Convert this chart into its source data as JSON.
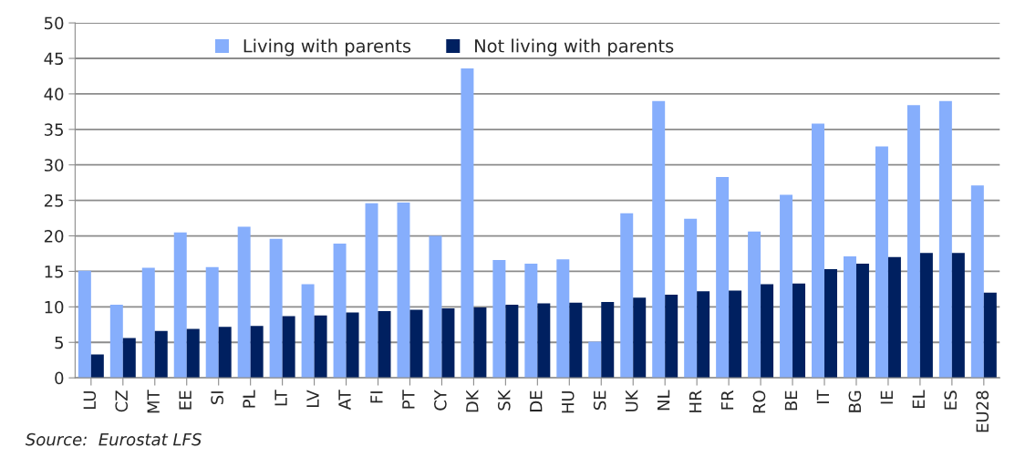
{
  "chart_data": {
    "type": "bar",
    "categories": [
      "LU",
      "CZ",
      "MT",
      "EE",
      "SI",
      "PL",
      "LT",
      "LV",
      "AT",
      "FI",
      "PT",
      "CY",
      "DK",
      "SK",
      "DE",
      "HU",
      "SE",
      "UK",
      "NL",
      "HR",
      "FR",
      "RO",
      "BE",
      "IT",
      "BG",
      "IE",
      "EL",
      "ES",
      "EU28"
    ],
    "series": [
      {
        "name": "Living with parents",
        "color": "#86aefc",
        "values": [
          15.1,
          10.3,
          15.5,
          20.5,
          15.6,
          21.3,
          19.6,
          13.2,
          18.9,
          24.6,
          24.7,
          20.0,
          43.6,
          16.6,
          16.1,
          16.7,
          5.1,
          23.2,
          39.0,
          22.4,
          28.3,
          20.6,
          25.8,
          35.8,
          17.1,
          32.6,
          38.4,
          39.0,
          27.1
        ]
      },
      {
        "name": "Not living with parents",
        "color": "#002060",
        "values": [
          3.3,
          5.6,
          6.6,
          6.9,
          7.2,
          7.3,
          8.7,
          8.8,
          9.2,
          9.4,
          9.6,
          9.8,
          9.9,
          10.3,
          10.5,
          10.6,
          10.7,
          11.3,
          11.7,
          12.2,
          12.3,
          13.2,
          13.3,
          15.3,
          16.1,
          17.0,
          17.6,
          17.6,
          12.0
        ]
      }
    ],
    "ylim": [
      0,
      50
    ],
    "yticks": [
      0,
      5,
      10,
      15,
      20,
      25,
      30,
      35,
      40,
      45,
      50
    ],
    "grid": "y",
    "legend": "top",
    "annotations": [
      "Source:  Eurostat LFS"
    ]
  }
}
